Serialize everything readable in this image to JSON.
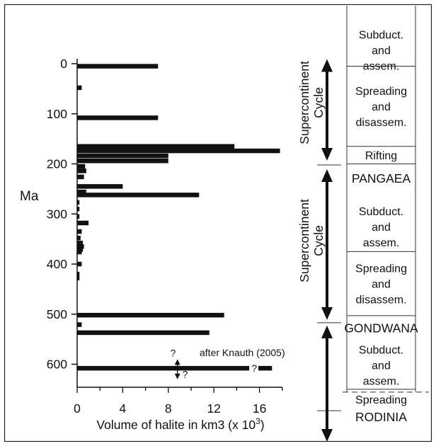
{
  "chart_data": {
    "type": "bar",
    "orientation": "horizontal",
    "xlabel": "Volume of halite in km3 (x 10",
    "xlabel_sup": "3",
    "xlabel_tail": ")",
    "ylabel": "Ma",
    "xlim": [
      0,
      18
    ],
    "ylim": [
      0,
      640
    ],
    "xticks": [
      "0",
      "4",
      "8",
      "12",
      "16"
    ],
    "xtick_values": [
      0,
      4,
      8,
      12,
      16
    ],
    "yticks": [
      "0",
      "100",
      "200",
      "300",
      "400",
      "500",
      "600"
    ],
    "ytick_values": [
      0,
      100,
      200,
      300,
      400,
      500,
      600
    ],
    "bars": [
      {
        "age": 5,
        "value": 7.1
      },
      {
        "age": 48,
        "value": 0.4
      },
      {
        "age": 108,
        "value": 7.1
      },
      {
        "age": 165,
        "value": 13.8
      },
      {
        "age": 174,
        "value": 17.8
      },
      {
        "age": 184,
        "value": 8.0
      },
      {
        "age": 194,
        "value": 8.0
      },
      {
        "age": 205,
        "value": 0.7
      },
      {
        "age": 214,
        "value": 0.8
      },
      {
        "age": 226,
        "value": 0.6
      },
      {
        "age": 245,
        "value": 4.0
      },
      {
        "age": 256,
        "value": 0.8
      },
      {
        "age": 262,
        "value": 10.7
      },
      {
        "age": 277,
        "value": 0.2
      },
      {
        "age": 290,
        "value": 0.2
      },
      {
        "age": 305,
        "value": 0.2
      },
      {
        "age": 318,
        "value": 1.0
      },
      {
        "age": 335,
        "value": 0.4
      },
      {
        "age": 348,
        "value": 0.3
      },
      {
        "age": 358,
        "value": 0.5
      },
      {
        "age": 365,
        "value": 0.6
      },
      {
        "age": 371,
        "value": 0.5
      },
      {
        "age": 376,
        "value": 0.4
      },
      {
        "age": 400,
        "value": 0.4
      },
      {
        "age": 420,
        "value": 0.2
      },
      {
        "age": 428,
        "value": 0.2
      },
      {
        "age": 502,
        "value": 12.9
      },
      {
        "age": 521,
        "value": 0.4
      },
      {
        "age": 537,
        "value": 11.6
      }
    ],
    "uncertain_bars": [
      {
        "age": 608,
        "value": 15.1
      },
      {
        "age": 608,
        "value_start": 15.9,
        "value": 17.1
      }
    ],
    "uncertain_arrow": {
      "value": 8.8,
      "age_top": 590,
      "age_bottom": 630
    },
    "annotations": {
      "source": "after Knauth (2005)",
      "question_marks": [
        "?",
        "?",
        "?"
      ]
    }
  },
  "cycle_panel": {
    "cycle_label_line1": "Supercontinent",
    "cycle_label_line2": "Cycle",
    "upper_cycle": {
      "age_top": 0,
      "age_bottom": 205
    },
    "lower_cycle": {
      "age_top": 205,
      "age_bottom": 520
    },
    "bottom_arrow": {
      "age_top": 520,
      "age_bottom": 630
    },
    "stages": [
      {
        "lines": [
          "Subduct.",
          "and",
          "assem."
        ],
        "age_top": -60,
        "age_bottom": 5,
        "boxed": true
      },
      {
        "lines": [
          "Spreading",
          "and",
          "disassem."
        ],
        "age_top": 5,
        "age_bottom": 165,
        "boxed": true
      },
      {
        "lines": [
          "Rifting"
        ],
        "age_top": 165,
        "age_bottom": 200,
        "boxed": true
      },
      {
        "lines": [
          "PANGAEA"
        ],
        "age_top": 200,
        "age_bottom": 258,
        "boxed": false,
        "supercontinent": true
      },
      {
        "lines": [
          "Subduct.",
          "and",
          "assem."
        ],
        "age_top": 275,
        "age_bottom": 375,
        "boxed": true
      },
      {
        "lines": [
          "Spreading",
          "and",
          "disassem."
        ],
        "age_top": 375,
        "age_bottom": 503,
        "boxed": true
      },
      {
        "lines": [
          "GONDWANA"
        ],
        "age_top": 503,
        "age_bottom": 553,
        "boxed": false,
        "supercontinent": true
      },
      {
        "lines": [
          "Subduct.",
          "and",
          "assem."
        ],
        "age_top": 553,
        "age_bottom": 650,
        "boxed": true
      },
      {
        "lines": [
          "Spreading"
        ],
        "age_top": 650,
        "age_bottom": 690,
        "boxed": false
      },
      {
        "lines": [
          "RODINIA"
        ],
        "age_top": 690,
        "age_bottom": 720,
        "boxed": false,
        "supercontinent": true
      }
    ]
  }
}
